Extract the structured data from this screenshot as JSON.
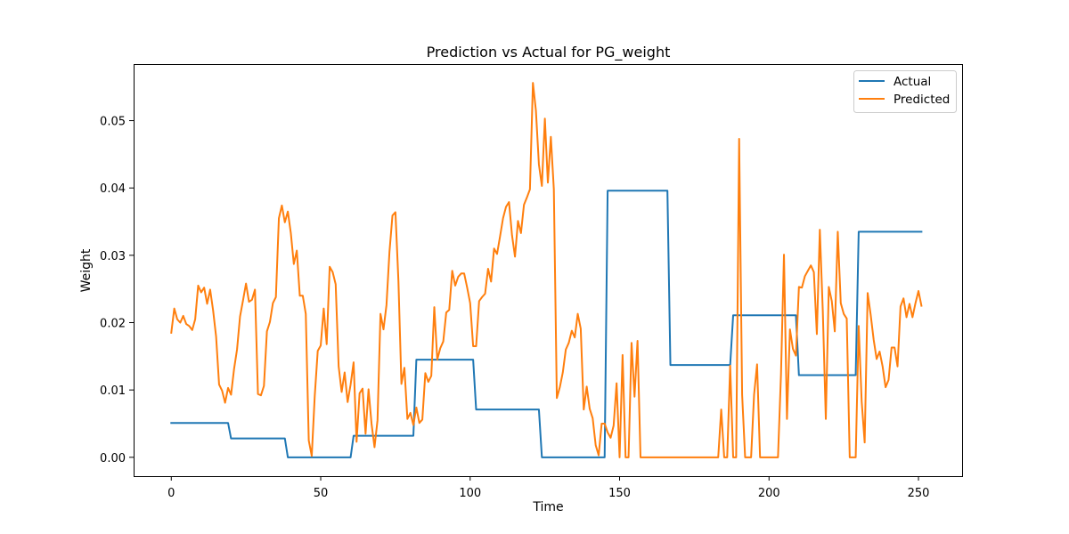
{
  "chart_data": {
    "type": "line",
    "title": "Prediction vs Actual for PG_weight",
    "xlabel": "Time",
    "ylabel": "Weight",
    "xlim": [
      -12.6,
      264.6
    ],
    "ylim": [
      -0.0028,
      0.0584
    ],
    "xticks": [
      "0",
      "50",
      "100",
      "150",
      "200",
      "250"
    ],
    "yticks": [
      "0.00",
      "0.01",
      "0.02",
      "0.03",
      "0.04",
      "0.05"
    ],
    "grid": false,
    "legend": "top-right",
    "series": [
      {
        "name": "Actual",
        "color": "#1f77b4",
        "points": [
          [
            0,
            0.0051
          ],
          [
            19,
            0.0051
          ],
          [
            20,
            0.0028
          ],
          [
            38,
            0.0028
          ],
          [
            39,
            0.0
          ],
          [
            60,
            0.0
          ],
          [
            61,
            0.0032
          ],
          [
            81,
            0.0032
          ],
          [
            82,
            0.0145
          ],
          [
            101,
            0.0145
          ],
          [
            102,
            0.0071
          ],
          [
            123,
            0.0071
          ],
          [
            124,
            0.0
          ],
          [
            145,
            0.0
          ],
          [
            146,
            0.0396
          ],
          [
            166,
            0.0396
          ],
          [
            167,
            0.0137
          ],
          [
            187,
            0.0137
          ],
          [
            188,
            0.0211
          ],
          [
            209,
            0.0211
          ],
          [
            210,
            0.0122
          ],
          [
            229,
            0.0122
          ],
          [
            230,
            0.0335
          ],
          [
            251,
            0.0335
          ]
        ]
      },
      {
        "name": "Predicted",
        "color": "#ff7f0e",
        "points": [
          [
            0,
            0.0185
          ],
          [
            1,
            0.0221
          ],
          [
            2,
            0.0205
          ],
          [
            3,
            0.02
          ],
          [
            4,
            0.021
          ],
          [
            5,
            0.0198
          ],
          [
            6,
            0.0195
          ],
          [
            7,
            0.0189
          ],
          [
            8,
            0.0205
          ],
          [
            9,
            0.0255
          ],
          [
            10,
            0.0245
          ],
          [
            11,
            0.0252
          ],
          [
            12,
            0.0228
          ],
          [
            13,
            0.0249
          ],
          [
            14,
            0.0218
          ],
          [
            15,
            0.0179
          ],
          [
            16,
            0.0108
          ],
          [
            17,
            0.0099
          ],
          [
            18,
            0.0081
          ],
          [
            19,
            0.0103
          ],
          [
            20,
            0.0093
          ],
          [
            21,
            0.0131
          ],
          [
            22,
            0.016
          ],
          [
            23,
            0.0209
          ],
          [
            24,
            0.0233
          ],
          [
            25,
            0.0258
          ],
          [
            26,
            0.0231
          ],
          [
            27,
            0.0234
          ],
          [
            28,
            0.0249
          ],
          [
            29,
            0.0094
          ],
          [
            30,
            0.0092
          ],
          [
            31,
            0.0106
          ],
          [
            32,
            0.0187
          ],
          [
            33,
            0.0201
          ],
          [
            34,
            0.0229
          ],
          [
            35,
            0.0238
          ],
          [
            36,
            0.0355
          ],
          [
            37,
            0.0374
          ],
          [
            38,
            0.0349
          ],
          [
            39,
            0.0365
          ],
          [
            40,
            0.0333
          ],
          [
            41,
            0.0287
          ],
          [
            42,
            0.0307
          ],
          [
            43,
            0.024
          ],
          [
            44,
            0.024
          ],
          [
            45,
            0.0213
          ],
          [
            46,
            0.0025
          ],
          [
            47,
            0.0002
          ],
          [
            48,
            0.0091
          ],
          [
            49,
            0.0158
          ],
          [
            50,
            0.0166
          ],
          [
            51,
            0.0221
          ],
          [
            52,
            0.0168
          ],
          [
            53,
            0.0283
          ],
          [
            54,
            0.0275
          ],
          [
            55,
            0.0257
          ],
          [
            56,
            0.0135
          ],
          [
            57,
            0.0097
          ],
          [
            58,
            0.0126
          ],
          [
            59,
            0.0082
          ],
          [
            60,
            0.0108
          ],
          [
            61,
            0.0141
          ],
          [
            62,
            0.0023
          ],
          [
            63,
            0.0095
          ],
          [
            64,
            0.0102
          ],
          [
            65,
            0.0035
          ],
          [
            66,
            0.0101
          ],
          [
            67,
            0.005
          ],
          [
            68,
            0.0015
          ],
          [
            69,
            0.0055
          ],
          [
            70,
            0.0213
          ],
          [
            71,
            0.019
          ],
          [
            72,
            0.0226
          ],
          [
            73,
            0.0305
          ],
          [
            74,
            0.0359
          ],
          [
            75,
            0.0364
          ],
          [
            76,
            0.0262
          ],
          [
            77,
            0.0109
          ],
          [
            78,
            0.0133
          ],
          [
            79,
            0.0057
          ],
          [
            80,
            0.0066
          ],
          [
            81,
            0.0048
          ],
          [
            82,
            0.0074
          ],
          [
            83,
            0.0051
          ],
          [
            84,
            0.0056
          ],
          [
            85,
            0.0125
          ],
          [
            86,
            0.0112
          ],
          [
            87,
            0.0121
          ],
          [
            88,
            0.0223
          ],
          [
            89,
            0.0145
          ],
          [
            90,
            0.0162
          ],
          [
            91,
            0.0172
          ],
          [
            92,
            0.0215
          ],
          [
            93,
            0.0219
          ],
          [
            94,
            0.0277
          ],
          [
            95,
            0.0255
          ],
          [
            96,
            0.0268
          ],
          [
            97,
            0.0273
          ],
          [
            98,
            0.0273
          ],
          [
            99,
            0.0252
          ],
          [
            100,
            0.0229
          ],
          [
            101,
            0.0165
          ],
          [
            102,
            0.0165
          ],
          [
            103,
            0.0232
          ],
          [
            104,
            0.0238
          ],
          [
            105,
            0.0243
          ],
          [
            106,
            0.028
          ],
          [
            107,
            0.0261
          ],
          [
            108,
            0.031
          ],
          [
            109,
            0.0302
          ],
          [
            110,
            0.0328
          ],
          [
            111,
            0.0355
          ],
          [
            112,
            0.0372
          ],
          [
            113,
            0.0379
          ],
          [
            114,
            0.033
          ],
          [
            115,
            0.0298
          ],
          [
            116,
            0.0351
          ],
          [
            117,
            0.0333
          ],
          [
            118,
            0.0375
          ],
          [
            119,
            0.0386
          ],
          [
            120,
            0.0398
          ],
          [
            121,
            0.0556
          ],
          [
            122,
            0.0515
          ],
          [
            123,
            0.0435
          ],
          [
            124,
            0.0403
          ],
          [
            125,
            0.0503
          ],
          [
            126,
            0.0408
          ],
          [
            127,
            0.0476
          ],
          [
            128,
            0.0398
          ],
          [
            129,
            0.0088
          ],
          [
            130,
            0.0104
          ],
          [
            131,
            0.0126
          ],
          [
            132,
            0.016
          ],
          [
            133,
            0.017
          ],
          [
            134,
            0.0188
          ],
          [
            135,
            0.0178
          ],
          [
            136,
            0.0213
          ],
          [
            137,
            0.0191
          ],
          [
            138,
            0.0071
          ],
          [
            139,
            0.0105
          ],
          [
            140,
            0.0072
          ],
          [
            141,
            0.0058
          ],
          [
            142,
            0.0018
          ],
          [
            143,
            0.0003
          ],
          [
            144,
            0.005
          ],
          [
            145,
            0.005
          ],
          [
            146,
            0.0037
          ],
          [
            147,
            0.0029
          ],
          [
            148,
            0.0047
          ],
          [
            149,
            0.011
          ],
          [
            150,
            0.0
          ],
          [
            151,
            0.0152
          ],
          [
            152,
            0.0
          ],
          [
            153,
            0.0
          ],
          [
            154,
            0.017
          ],
          [
            155,
            0.009
          ],
          [
            156,
            0.0173
          ],
          [
            157,
            0.0
          ],
          [
            159,
            0.0
          ],
          [
            183,
            0.0
          ],
          [
            184,
            0.0071
          ],
          [
            185,
            0.0
          ],
          [
            186,
            0.0
          ],
          [
            187,
            0.0136
          ],
          [
            188,
            0.0
          ],
          [
            189,
            0.0
          ],
          [
            190,
            0.0473
          ],
          [
            191,
            0.0093
          ],
          [
            192,
            0.0
          ],
          [
            194,
            0.0
          ],
          [
            195,
            0.0093
          ],
          [
            196,
            0.0138
          ],
          [
            197,
            0.0
          ],
          [
            203,
            0.0
          ],
          [
            204,
            0.0123
          ],
          [
            205,
            0.0301
          ],
          [
            206,
            0.0057
          ],
          [
            207,
            0.019
          ],
          [
            208,
            0.0161
          ],
          [
            209,
            0.0151
          ],
          [
            210,
            0.0253
          ],
          [
            211,
            0.0252
          ],
          [
            212,
            0.0269
          ],
          [
            213,
            0.0277
          ],
          [
            214,
            0.0285
          ],
          [
            215,
            0.0275
          ],
          [
            216,
            0.0183
          ],
          [
            217,
            0.0338
          ],
          [
            218,
            0.0216
          ],
          [
            219,
            0.0057
          ],
          [
            220,
            0.0253
          ],
          [
            221,
            0.0232
          ],
          [
            222,
            0.0187
          ],
          [
            223,
            0.0335
          ],
          [
            224,
            0.0229
          ],
          [
            225,
            0.0213
          ],
          [
            226,
            0.0206
          ],
          [
            227,
            0.0
          ],
          [
            228,
            0.0
          ],
          [
            229,
            0.0
          ],
          [
            230,
            0.0195
          ],
          [
            231,
            0.0083
          ],
          [
            232,
            0.0022
          ],
          [
            233,
            0.0244
          ],
          [
            234,
            0.0212
          ],
          [
            235,
            0.0175
          ],
          [
            236,
            0.0146
          ],
          [
            237,
            0.0157
          ],
          [
            238,
            0.0135
          ],
          [
            239,
            0.0104
          ],
          [
            240,
            0.0115
          ],
          [
            241,
            0.0163
          ],
          [
            242,
            0.0163
          ],
          [
            243,
            0.0135
          ],
          [
            244,
            0.0224
          ],
          [
            245,
            0.0236
          ],
          [
            246,
            0.0208
          ],
          [
            247,
            0.0228
          ],
          [
            248,
            0.0208
          ],
          [
            249,
            0.0229
          ],
          [
            250,
            0.0247
          ],
          [
            251,
            0.0225
          ]
        ]
      }
    ]
  }
}
